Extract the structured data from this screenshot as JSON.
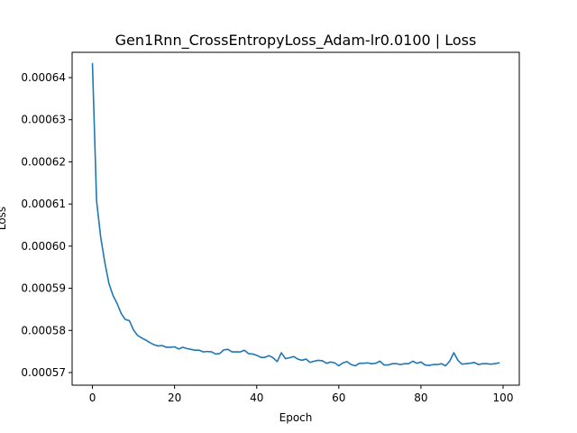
{
  "chart_data": {
    "type": "line",
    "title": "Gen1Rnn_CrossEntropyLoss_Adam-lr0.0100 | Loss",
    "xlabel": "Epoch",
    "ylabel": "Loss",
    "xlim": [
      -4.95,
      103.95
    ],
    "ylim": [
      0.000567,
      0.000646
    ],
    "xticks": [
      0,
      20,
      40,
      60,
      80,
      100
    ],
    "yticks": [
      0.00057,
      0.00058,
      0.00059,
      0.0006,
      0.00061,
      0.00062,
      0.00063,
      0.00064
    ],
    "ytick_labels": [
      "0.00057",
      "0.00058",
      "0.00059",
      "0.00060",
      "0.00061",
      "0.00062",
      "0.00063",
      "0.00064"
    ],
    "grid": false,
    "line_color": "#1f77b4",
    "series": [
      {
        "values": [
          0.0006433,
          0.0006108,
          0.0006022,
          0.0005962,
          0.0005912,
          0.0005883,
          0.0005864,
          0.000584,
          0.0005826,
          0.0005823,
          0.0005801,
          0.0005788,
          0.0005782,
          0.0005777,
          0.0005771,
          0.0005766,
          0.0005763,
          0.0005764,
          0.000576,
          0.000576,
          0.0005761,
          0.0005756,
          0.000576,
          0.0005757,
          0.0005755,
          0.0005753,
          0.0005753,
          0.0005749,
          0.000575,
          0.0005749,
          0.0005744,
          0.0005745,
          0.0005754,
          0.0005755,
          0.0005749,
          0.0005749,
          0.0005749,
          0.0005753,
          0.0005745,
          0.0005744,
          0.0005741,
          0.0005736,
          0.0005736,
          0.000574,
          0.0005735,
          0.0005726,
          0.0005747,
          0.0005733,
          0.0005735,
          0.0005738,
          0.0005732,
          0.0005729,
          0.0005732,
          0.0005724,
          0.0005727,
          0.0005729,
          0.0005728,
          0.0005722,
          0.0005725,
          0.0005723,
          0.0005716,
          0.0005723,
          0.0005726,
          0.0005719,
          0.0005716,
          0.0005722,
          0.0005722,
          0.0005723,
          0.0005721,
          0.0005722,
          0.0005727,
          0.0005718,
          0.0005718,
          0.0005721,
          0.0005721,
          0.0005719,
          0.0005721,
          0.0005721,
          0.0005727,
          0.0005722,
          0.0005725,
          0.0005718,
          0.0005717,
          0.0005719,
          0.0005719,
          0.0005721,
          0.0005716,
          0.0005727,
          0.0005747,
          0.0005729,
          0.000572,
          0.0005721,
          0.0005722,
          0.0005724,
          0.0005719,
          0.0005721,
          0.0005721,
          0.000572,
          0.0005721,
          0.0005723
        ]
      }
    ]
  }
}
